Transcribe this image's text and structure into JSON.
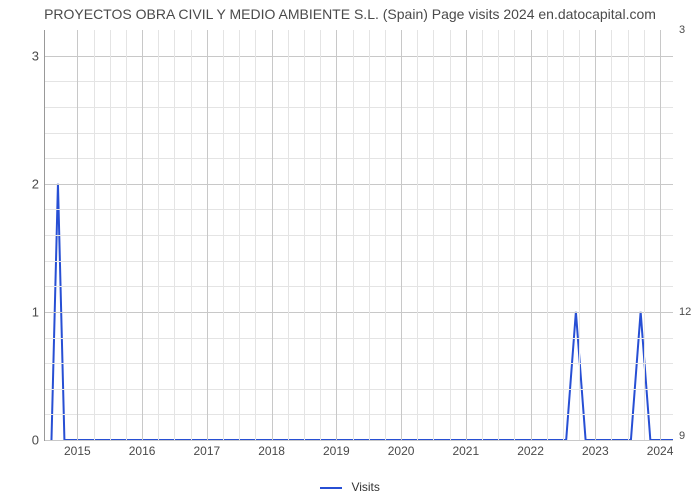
{
  "title": "PROYECTOS OBRA CIVIL Y MEDIO AMBIENTE S.L. (Spain) Page visits 2024 en.datocapital.com",
  "chart": {
    "type": "line",
    "background_color": "#ffffff",
    "grid_major_color": "#c8c8c8",
    "grid_minor_color": "#e4e4e4",
    "axis_color": "#999999",
    "label_color": "#4a4a4a",
    "title_fontsize": 14,
    "tick_fontsize": 12,
    "x": {
      "min": 2014.5,
      "max": 2024.2,
      "ticks": [
        2015,
        2016,
        2017,
        2018,
        2019,
        2020,
        2021,
        2022,
        2023,
        2024
      ],
      "minor_count_between": 3
    },
    "y": {
      "min": 0,
      "max": 3.2,
      "ticks": [
        0,
        1,
        2,
        3
      ],
      "minor_count_between": 4,
      "secondary_ticks": [
        {
          "value": 0.03,
          "label": "9"
        },
        {
          "value": 1.0,
          "label": "12"
        },
        {
          "value": 3.2,
          "label": "3"
        }
      ]
    },
    "series": {
      "name": "Visits",
      "color": "#274fd4",
      "line_width": 2,
      "points": [
        [
          2014.6,
          0.0
        ],
        [
          2014.7,
          2.0
        ],
        [
          2014.8,
          0.0
        ],
        [
          2022.55,
          0.0
        ],
        [
          2022.7,
          1.0
        ],
        [
          2022.85,
          0.0
        ],
        [
          2023.55,
          0.0
        ],
        [
          2023.7,
          1.0
        ],
        [
          2023.85,
          0.0
        ],
        [
          2024.2,
          0.0
        ]
      ]
    },
    "legend": {
      "label": "Visits"
    }
  }
}
